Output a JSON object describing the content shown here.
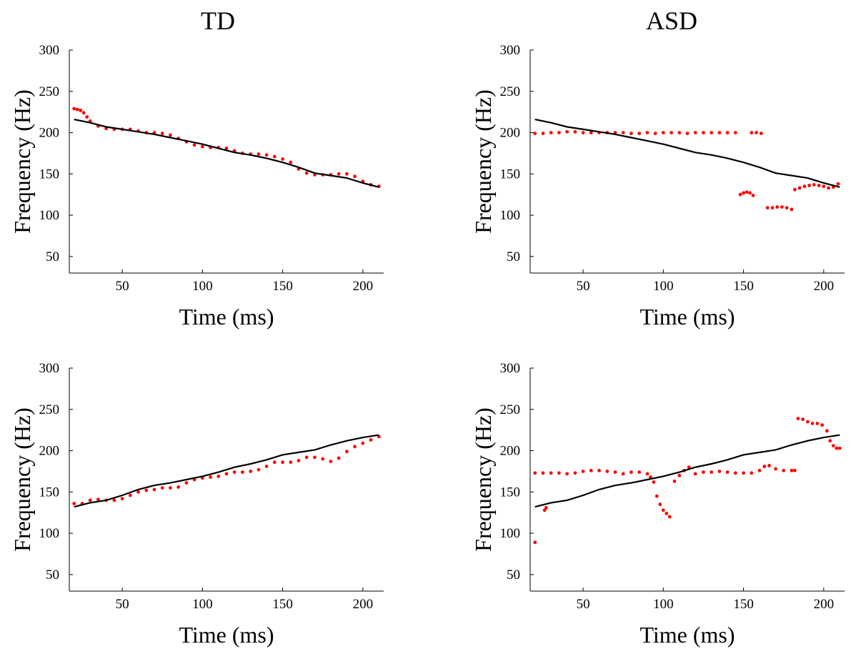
{
  "columns": {
    "left_title": "TD",
    "right_title": "ASD"
  },
  "chart_data": [
    {
      "type": "scatter",
      "group": "TD",
      "xlabel": "Time (ms)",
      "ylabel": "Frequency (Hz)",
      "xlim": [
        17,
        213
      ],
      "ylim": [
        30,
        300
      ],
      "xticks": [
        50,
        100,
        150,
        200
      ],
      "yticks": [
        50,
        100,
        150,
        200,
        250,
        300
      ],
      "series": [
        {
          "color": "#ff0000",
          "style": "dots",
          "x": [
            20,
            22,
            24,
            26,
            28,
            30,
            35,
            40,
            45,
            50,
            55,
            60,
            65,
            70,
            75,
            80,
            85,
            90,
            95,
            100,
            105,
            110,
            115,
            120,
            125,
            130,
            135,
            140,
            145,
            150,
            155,
            160,
            165,
            170,
            175,
            180,
            185,
            190,
            195,
            200,
            205,
            210
          ],
          "y": [
            229,
            228,
            227,
            224,
            219,
            214,
            208,
            205,
            204,
            204,
            204,
            202,
            200,
            200,
            199,
            197,
            193,
            189,
            185,
            183,
            182,
            182,
            181,
            178,
            175,
            174,
            174,
            173,
            171,
            168,
            164,
            156,
            151,
            149,
            149,
            149,
            150,
            150,
            147,
            141,
            137,
            135
          ]
        },
        {
          "color": "#000000",
          "style": "line",
          "x": [
            20,
            30,
            40,
            50,
            60,
            70,
            80,
            90,
            100,
            110,
            120,
            130,
            140,
            150,
            160,
            170,
            180,
            190,
            200,
            210
          ],
          "y": [
            216,
            212,
            207,
            204,
            201,
            198,
            194,
            190,
            186,
            181,
            176,
            173,
            169,
            164,
            158,
            151,
            148,
            145,
            139,
            134
          ]
        }
      ]
    },
    {
      "type": "scatter",
      "group": "ASD",
      "xlabel": "Time (ms)",
      "ylabel": "Frequency (Hz)",
      "xlim": [
        17,
        213
      ],
      "ylim": [
        30,
        300
      ],
      "xticks": [
        50,
        100,
        150,
        200
      ],
      "yticks": [
        50,
        100,
        150,
        200,
        250,
        300
      ],
      "series": [
        {
          "color": "#ff0000",
          "style": "dots",
          "x": [
            20,
            25,
            30,
            35,
            40,
            45,
            50,
            55,
            60,
            65,
            70,
            75,
            80,
            85,
            90,
            95,
            100,
            105,
            110,
            115,
            120,
            125,
            130,
            135,
            140,
            145,
            155,
            158,
            161,
            148,
            150,
            152,
            154,
            156,
            165,
            168,
            171,
            174,
            177,
            180,
            182,
            185,
            188,
            191,
            194,
            197,
            200,
            203,
            206,
            209
          ],
          "y": [
            199,
            199,
            200,
            200,
            201,
            201,
            200,
            200,
            200,
            200,
            200,
            200,
            199,
            199,
            200,
            199,
            200,
            200,
            200,
            199,
            200,
            200,
            200,
            200,
            200,
            200,
            200,
            200,
            199,
            125,
            127,
            128,
            127,
            124,
            109,
            109,
            110,
            110,
            109,
            107,
            131,
            133,
            135,
            136,
            137,
            136,
            135,
            133,
            134,
            138
          ]
        },
        {
          "color": "#000000",
          "style": "line",
          "x": [
            20,
            30,
            40,
            50,
            60,
            70,
            80,
            90,
            100,
            110,
            120,
            130,
            140,
            150,
            160,
            170,
            180,
            190,
            200,
            210
          ],
          "y": [
            216,
            212,
            207,
            204,
            201,
            198,
            194,
            190,
            186,
            181,
            176,
            173,
            169,
            164,
            158,
            151,
            148,
            145,
            139,
            134
          ]
        }
      ]
    },
    {
      "type": "scatter",
      "group": "TD",
      "xlabel": "Time (ms)",
      "ylabel": "Frequency (Hz)",
      "xlim": [
        17,
        213
      ],
      "ylim": [
        30,
        300
      ],
      "xticks": [
        50,
        100,
        150,
        200
      ],
      "yticks": [
        50,
        100,
        150,
        200,
        250,
        300
      ],
      "series": [
        {
          "color": "#ff0000",
          "style": "dots",
          "x": [
            20,
            25,
            30,
            35,
            40,
            45,
            50,
            55,
            60,
            65,
            70,
            75,
            80,
            85,
            90,
            95,
            100,
            105,
            110,
            115,
            120,
            125,
            130,
            135,
            140,
            145,
            150,
            155,
            160,
            165,
            170,
            175,
            180,
            185,
            190,
            195,
            200,
            205,
            210
          ],
          "y": [
            136,
            136,
            140,
            141,
            140,
            140,
            142,
            146,
            150,
            152,
            153,
            155,
            155,
            156,
            161,
            165,
            167,
            168,
            169,
            172,
            174,
            174,
            175,
            177,
            181,
            186,
            186,
            186,
            188,
            192,
            192,
            190,
            187,
            191,
            199,
            205,
            209,
            213,
            217
          ]
        },
        {
          "color": "#000000",
          "style": "line",
          "x": [
            20,
            30,
            40,
            50,
            60,
            70,
            80,
            90,
            100,
            110,
            120,
            130,
            140,
            150,
            160,
            170,
            180,
            190,
            200,
            210
          ],
          "y": [
            132,
            137,
            140,
            146,
            153,
            158,
            161,
            165,
            169,
            174,
            180,
            184,
            189,
            195,
            198,
            201,
            207,
            212,
            216,
            219
          ]
        }
      ]
    },
    {
      "type": "scatter",
      "group": "ASD",
      "xlabel": "Time (ms)",
      "ylabel": "Frequency (Hz)",
      "xlim": [
        17,
        213
      ],
      "ylim": [
        30,
        300
      ],
      "xticks": [
        50,
        100,
        150,
        200
      ],
      "yticks": [
        50,
        100,
        150,
        200,
        250,
        300
      ],
      "series": [
        {
          "color": "#ff0000",
          "style": "dots",
          "x": [
            20,
            26,
            27,
            20,
            25,
            30,
            35,
            40,
            45,
            50,
            55,
            60,
            65,
            70,
            75,
            80,
            85,
            90,
            92,
            94,
            96,
            98,
            100,
            102,
            104,
            107,
            110,
            113,
            116,
            120,
            125,
            130,
            135,
            140,
            145,
            150,
            155,
            160,
            163,
            166,
            170,
            175,
            180,
            182,
            184,
            187,
            190,
            193,
            196,
            199,
            202,
            204,
            206,
            208,
            210
          ],
          "y": [
            89,
            128,
            131,
            173,
            173,
            173,
            173,
            172,
            173,
            175,
            176,
            176,
            175,
            174,
            172,
            174,
            174,
            172,
            168,
            162,
            145,
            135,
            128,
            124,
            120,
            163,
            170,
            176,
            180,
            172,
            174,
            174,
            175,
            174,
            173,
            173,
            173,
            176,
            181,
            182,
            178,
            176,
            176,
            176,
            239,
            238,
            235,
            233,
            233,
            231,
            224,
            212,
            206,
            203,
            203
          ]
        },
        {
          "color": "#000000",
          "style": "line",
          "x": [
            20,
            30,
            40,
            50,
            60,
            70,
            80,
            90,
            100,
            110,
            120,
            130,
            140,
            150,
            160,
            170,
            180,
            190,
            200,
            210
          ],
          "y": [
            132,
            137,
            140,
            146,
            153,
            158,
            161,
            165,
            169,
            174,
            180,
            184,
            189,
            195,
            198,
            201,
            207,
            212,
            216,
            219
          ]
        }
      ]
    }
  ]
}
